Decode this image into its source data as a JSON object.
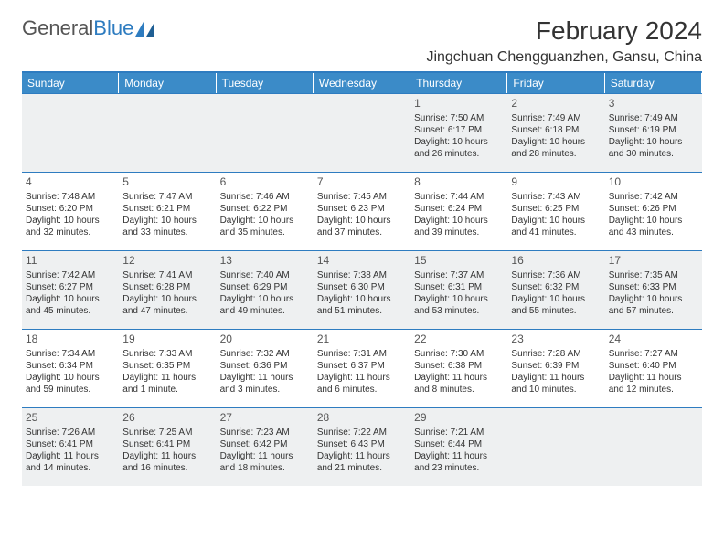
{
  "logo": {
    "text1": "General",
    "text2": "Blue"
  },
  "title": "February 2024",
  "location": "Jingchuan Chengguanzhen, Gansu, China",
  "colors": {
    "header_bg": "#3b8bc8",
    "rule": "#2e7cc0",
    "shaded": "#eef0f1",
    "text": "#333333"
  },
  "days_of_week": [
    "Sunday",
    "Monday",
    "Tuesday",
    "Wednesday",
    "Thursday",
    "Friday",
    "Saturday"
  ],
  "weeks": [
    [
      {
        "n": "",
        "sr": "",
        "ss": "",
        "dl": ""
      },
      {
        "n": "",
        "sr": "",
        "ss": "",
        "dl": ""
      },
      {
        "n": "",
        "sr": "",
        "ss": "",
        "dl": ""
      },
      {
        "n": "",
        "sr": "",
        "ss": "",
        "dl": ""
      },
      {
        "n": "1",
        "sr": "Sunrise: 7:50 AM",
        "ss": "Sunset: 6:17 PM",
        "dl": "Daylight: 10 hours and 26 minutes."
      },
      {
        "n": "2",
        "sr": "Sunrise: 7:49 AM",
        "ss": "Sunset: 6:18 PM",
        "dl": "Daylight: 10 hours and 28 minutes."
      },
      {
        "n": "3",
        "sr": "Sunrise: 7:49 AM",
        "ss": "Sunset: 6:19 PM",
        "dl": "Daylight: 10 hours and 30 minutes."
      }
    ],
    [
      {
        "n": "4",
        "sr": "Sunrise: 7:48 AM",
        "ss": "Sunset: 6:20 PM",
        "dl": "Daylight: 10 hours and 32 minutes."
      },
      {
        "n": "5",
        "sr": "Sunrise: 7:47 AM",
        "ss": "Sunset: 6:21 PM",
        "dl": "Daylight: 10 hours and 33 minutes."
      },
      {
        "n": "6",
        "sr": "Sunrise: 7:46 AM",
        "ss": "Sunset: 6:22 PM",
        "dl": "Daylight: 10 hours and 35 minutes."
      },
      {
        "n": "7",
        "sr": "Sunrise: 7:45 AM",
        "ss": "Sunset: 6:23 PM",
        "dl": "Daylight: 10 hours and 37 minutes."
      },
      {
        "n": "8",
        "sr": "Sunrise: 7:44 AM",
        "ss": "Sunset: 6:24 PM",
        "dl": "Daylight: 10 hours and 39 minutes."
      },
      {
        "n": "9",
        "sr": "Sunrise: 7:43 AM",
        "ss": "Sunset: 6:25 PM",
        "dl": "Daylight: 10 hours and 41 minutes."
      },
      {
        "n": "10",
        "sr": "Sunrise: 7:42 AM",
        "ss": "Sunset: 6:26 PM",
        "dl": "Daylight: 10 hours and 43 minutes."
      }
    ],
    [
      {
        "n": "11",
        "sr": "Sunrise: 7:42 AM",
        "ss": "Sunset: 6:27 PM",
        "dl": "Daylight: 10 hours and 45 minutes."
      },
      {
        "n": "12",
        "sr": "Sunrise: 7:41 AM",
        "ss": "Sunset: 6:28 PM",
        "dl": "Daylight: 10 hours and 47 minutes."
      },
      {
        "n": "13",
        "sr": "Sunrise: 7:40 AM",
        "ss": "Sunset: 6:29 PM",
        "dl": "Daylight: 10 hours and 49 minutes."
      },
      {
        "n": "14",
        "sr": "Sunrise: 7:38 AM",
        "ss": "Sunset: 6:30 PM",
        "dl": "Daylight: 10 hours and 51 minutes."
      },
      {
        "n": "15",
        "sr": "Sunrise: 7:37 AM",
        "ss": "Sunset: 6:31 PM",
        "dl": "Daylight: 10 hours and 53 minutes."
      },
      {
        "n": "16",
        "sr": "Sunrise: 7:36 AM",
        "ss": "Sunset: 6:32 PM",
        "dl": "Daylight: 10 hours and 55 minutes."
      },
      {
        "n": "17",
        "sr": "Sunrise: 7:35 AM",
        "ss": "Sunset: 6:33 PM",
        "dl": "Daylight: 10 hours and 57 minutes."
      }
    ],
    [
      {
        "n": "18",
        "sr": "Sunrise: 7:34 AM",
        "ss": "Sunset: 6:34 PM",
        "dl": "Daylight: 10 hours and 59 minutes."
      },
      {
        "n": "19",
        "sr": "Sunrise: 7:33 AM",
        "ss": "Sunset: 6:35 PM",
        "dl": "Daylight: 11 hours and 1 minute."
      },
      {
        "n": "20",
        "sr": "Sunrise: 7:32 AM",
        "ss": "Sunset: 6:36 PM",
        "dl": "Daylight: 11 hours and 3 minutes."
      },
      {
        "n": "21",
        "sr": "Sunrise: 7:31 AM",
        "ss": "Sunset: 6:37 PM",
        "dl": "Daylight: 11 hours and 6 minutes."
      },
      {
        "n": "22",
        "sr": "Sunrise: 7:30 AM",
        "ss": "Sunset: 6:38 PM",
        "dl": "Daylight: 11 hours and 8 minutes."
      },
      {
        "n": "23",
        "sr": "Sunrise: 7:28 AM",
        "ss": "Sunset: 6:39 PM",
        "dl": "Daylight: 11 hours and 10 minutes."
      },
      {
        "n": "24",
        "sr": "Sunrise: 7:27 AM",
        "ss": "Sunset: 6:40 PM",
        "dl": "Daylight: 11 hours and 12 minutes."
      }
    ],
    [
      {
        "n": "25",
        "sr": "Sunrise: 7:26 AM",
        "ss": "Sunset: 6:41 PM",
        "dl": "Daylight: 11 hours and 14 minutes."
      },
      {
        "n": "26",
        "sr": "Sunrise: 7:25 AM",
        "ss": "Sunset: 6:41 PM",
        "dl": "Daylight: 11 hours and 16 minutes."
      },
      {
        "n": "27",
        "sr": "Sunrise: 7:23 AM",
        "ss": "Sunset: 6:42 PM",
        "dl": "Daylight: 11 hours and 18 minutes."
      },
      {
        "n": "28",
        "sr": "Sunrise: 7:22 AM",
        "ss": "Sunset: 6:43 PM",
        "dl": "Daylight: 11 hours and 21 minutes."
      },
      {
        "n": "29",
        "sr": "Sunrise: 7:21 AM",
        "ss": "Sunset: 6:44 PM",
        "dl": "Daylight: 11 hours and 23 minutes."
      },
      {
        "n": "",
        "sr": "",
        "ss": "",
        "dl": ""
      },
      {
        "n": "",
        "sr": "",
        "ss": "",
        "dl": ""
      }
    ]
  ]
}
